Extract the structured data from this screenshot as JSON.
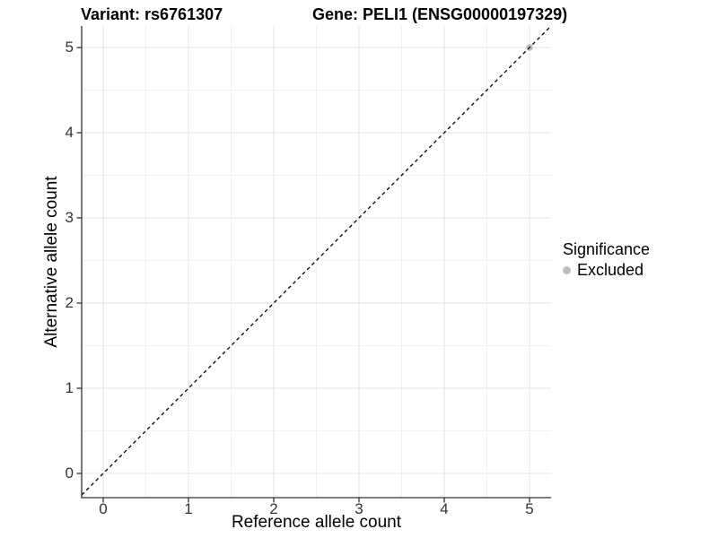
{
  "titles": {
    "variant": "Variant: rs6761307",
    "gene": "Gene: PELI1 (ENSG00000197329)"
  },
  "axes": {
    "x_label": "Reference allele count",
    "y_label": "Alternative allele count"
  },
  "legend": {
    "title": "Significance",
    "entries": [
      {
        "label": "Excluded",
        "color": "#bebebe"
      }
    ]
  },
  "chart_data": {
    "type": "scatter",
    "title_left": "Variant: rs6761307",
    "title_right": "Gene: PELI1 (ENSG00000197329)",
    "xlabel": "Reference allele count",
    "ylabel": "Alternative allele count",
    "xlim": [
      -0.25,
      5.25
    ],
    "ylim": [
      -0.28,
      5.25
    ],
    "x_ticks": [
      0,
      1,
      2,
      3,
      4,
      5
    ],
    "y_ticks": [
      0,
      1,
      2,
      3,
      4,
      5
    ],
    "minor_ticks": [
      0.5,
      1.5,
      2.5,
      3.5,
      4.5
    ],
    "grid": "major+minor",
    "legend_position": "right",
    "series": [
      {
        "name": "Excluded",
        "color": "#bebebe",
        "points": [
          {
            "x": 5,
            "y": 5
          }
        ]
      }
    ],
    "reference_line": {
      "kind": "abline",
      "slope": 1,
      "intercept": 0,
      "style": "dashed",
      "color": "#000000"
    },
    "colors": {
      "major_grid": "#e3e3e3",
      "minor_grid": "#f1f1f1",
      "axis": "#333333",
      "tick_text": "#333333",
      "point_excluded": "#bebebe"
    }
  }
}
